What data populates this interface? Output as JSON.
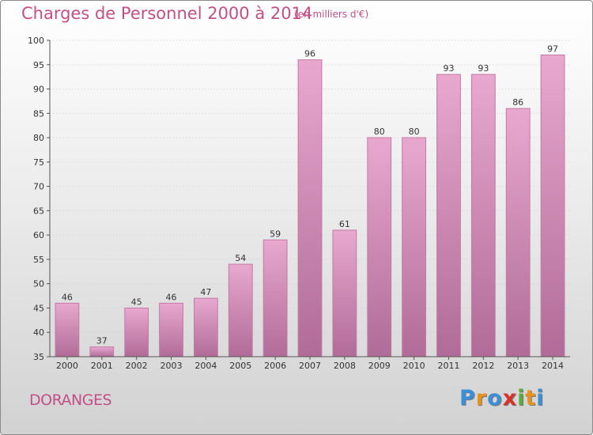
{
  "header": {
    "title": "Charges de Personnel 2000 à 2014",
    "subtitle": "(en milliers d'€)"
  },
  "footer": {
    "commune": "DORANGES",
    "logo_letters": [
      "P",
      "r",
      "o",
      "x",
      "i",
      "t",
      "i"
    ],
    "logo_colors": [
      "#3a8fd6",
      "#e8911c",
      "#3a8fd6",
      "#d8332b",
      "#5cab3a",
      "#e8911c",
      "#3a8fd6"
    ]
  },
  "colors": {
    "bar_top": "#e8a8cf",
    "bar_bottom": "#b06c97",
    "bar_side": "#c47aa6",
    "title": "#c24f86"
  },
  "chart_data": {
    "type": "bar",
    "categories": [
      "2000",
      "2001",
      "2002",
      "2003",
      "2004",
      "2005",
      "2006",
      "2007",
      "2008",
      "2009",
      "2010",
      "2011",
      "2012",
      "2013",
      "2014"
    ],
    "values": [
      46,
      37,
      45,
      46,
      47,
      54,
      59,
      96,
      61,
      80,
      80,
      93,
      93,
      86,
      97
    ],
    "ylim": [
      35,
      100
    ],
    "yticks": [
      35,
      40,
      45,
      50,
      55,
      60,
      65,
      70,
      75,
      80,
      85,
      90,
      95,
      100
    ],
    "grid": true,
    "legend": "none"
  }
}
